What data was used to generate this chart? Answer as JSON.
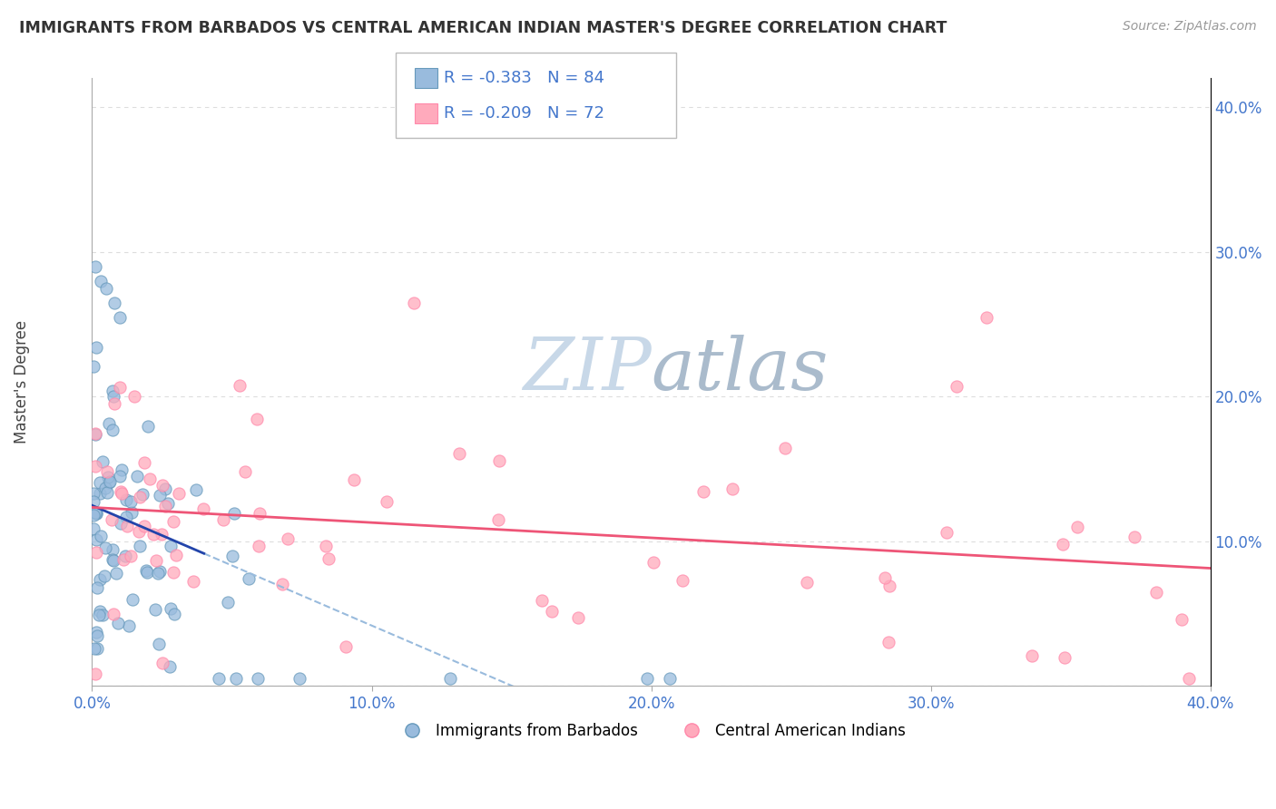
{
  "title": "IMMIGRANTS FROM BARBADOS VS CENTRAL AMERICAN INDIAN MASTER'S DEGREE CORRELATION CHART",
  "source": "Source: ZipAtlas.com",
  "ylabel": "Master's Degree",
  "xmin": 0.0,
  "xmax": 0.4,
  "ymin": 0.0,
  "ymax": 0.42,
  "x_ticks": [
    0.0,
    0.1,
    0.2,
    0.3,
    0.4
  ],
  "x_tick_labels": [
    "0.0%",
    "10.0%",
    "20.0%",
    "30.0%",
    "40.0%"
  ],
  "y_ticks": [
    0.0,
    0.1,
    0.2,
    0.3,
    0.4
  ],
  "y_tick_labels": [
    "",
    "10.0%",
    "20.0%",
    "30.0%",
    "40.0%"
  ],
  "legend1_label": "Immigrants from Barbados",
  "legend2_label": "Central American Indians",
  "R1": -0.383,
  "N1": 84,
  "R2": -0.209,
  "N2": 72,
  "blue_color": "#99BBDD",
  "pink_color": "#FFAABC",
  "blue_edge_color": "#6699BB",
  "pink_edge_color": "#FF88AA",
  "blue_line_color": "#2244AA",
  "pink_line_color": "#EE5577",
  "blue_dash_color": "#99BBDD",
  "watermark_zip_color": "#C8D8E8",
  "watermark_atlas_color": "#AABBCC",
  "title_color": "#333333",
  "axis_label_color": "#4477CC",
  "grid_color": "#DDDDDD",
  "source_color": "#999999"
}
